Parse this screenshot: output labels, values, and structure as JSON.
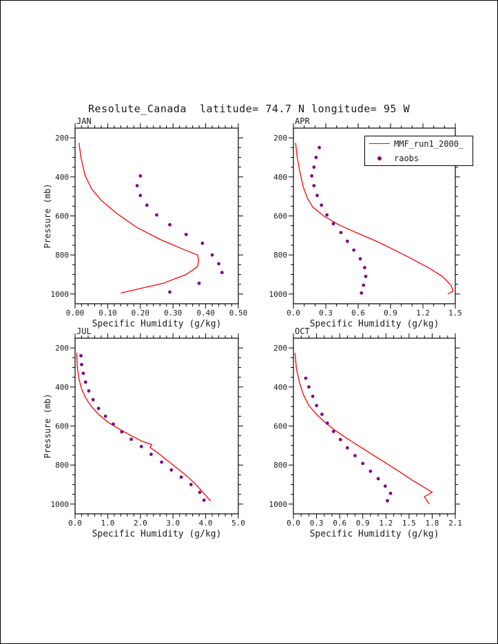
{
  "page": {
    "title": "Resolute_Canada  latitude= 74.7 N longitude= 95 W"
  },
  "colors": {
    "model_line": "#ff0000",
    "raobs_dot": "#800080",
    "axis": "#000000"
  },
  "legend": {
    "position": "top-right",
    "items": [
      {
        "label": "MMF_run1_2000_",
        "type": "line",
        "color": "#ff0000"
      },
      {
        "label": "raobs",
        "type": "dot",
        "color": "#800080"
      }
    ]
  },
  "chart_data": [
    {
      "type": "line",
      "panel": "JAN",
      "xlabel": "Specific Humidity (g/kg)",
      "ylabel": "Pressure (mb)",
      "xlim": [
        0.0,
        0.5
      ],
      "xticks": [
        0.0,
        0.1,
        0.2,
        0.3,
        0.4,
        0.5
      ],
      "xtick_labels": [
        "0.00",
        "0.10",
        "0.20",
        "0.30",
        "0.40",
        "0.50"
      ],
      "xminor_step": 0.02,
      "ylim": [
        150,
        1050
      ],
      "yticks": [
        200,
        400,
        600,
        800,
        1000
      ],
      "ytick_labels": [
        "200",
        "400",
        "600",
        "800",
        "1000"
      ],
      "yminor_step": 50,
      "series": [
        {
          "name": "MMF_run1_2000_",
          "type": "line",
          "color": "#ff0000",
          "points": [
            [
              0.012,
              225
            ],
            [
              0.018,
              300
            ],
            [
              0.03,
              390
            ],
            [
              0.05,
              460
            ],
            [
              0.08,
              520
            ],
            [
              0.13,
              590
            ],
            [
              0.19,
              660
            ],
            [
              0.26,
              720
            ],
            [
              0.33,
              770
            ],
            [
              0.375,
              800
            ],
            [
              0.378,
              830
            ],
            [
              0.375,
              860
            ],
            [
              0.34,
              900
            ],
            [
              0.27,
              945
            ],
            [
              0.14,
              995
            ]
          ]
        },
        {
          "name": "raobs",
          "type": "scatter",
          "color": "#800080",
          "points": [
            [
              0.2,
              395
            ],
            [
              0.19,
              445
            ],
            [
              0.2,
              495
            ],
            [
              0.22,
              545
            ],
            [
              0.25,
              595
            ],
            [
              0.29,
              645
            ],
            [
              0.34,
              695
            ],
            [
              0.39,
              740
            ],
            [
              0.42,
              800
            ],
            [
              0.44,
              845
            ],
            [
              0.45,
              890
            ],
            [
              0.38,
              945
            ],
            [
              0.29,
              990
            ]
          ]
        }
      ]
    },
    {
      "type": "line",
      "panel": "APR",
      "xlabel": "Specific Humidity (g/kg)",
      "ylabel": "",
      "xlim": [
        0.0,
        1.5
      ],
      "xticks": [
        0.0,
        0.3,
        0.6,
        0.9,
        1.2,
        1.5
      ],
      "xtick_labels": [
        "0.0",
        "0.3",
        "0.6",
        "0.9",
        "1.2",
        "1.5"
      ],
      "xminor_step": 0.1,
      "ylim": [
        150,
        1050
      ],
      "yticks": [
        200,
        400,
        600,
        800,
        1000
      ],
      "ytick_labels": [
        "200",
        "400",
        "600",
        "800",
        "1000"
      ],
      "yminor_step": 50,
      "series": [
        {
          "name": "MMF_run1_2000_",
          "type": "line",
          "color": "#ff0000",
          "points": [
            [
              0.02,
              225
            ],
            [
              0.035,
              300
            ],
            [
              0.06,
              375
            ],
            [
              0.09,
              450
            ],
            [
              0.13,
              510
            ],
            [
              0.18,
              555
            ],
            [
              0.28,
              600
            ],
            [
              0.42,
              645
            ],
            [
              0.58,
              685
            ],
            [
              0.75,
              725
            ],
            [
              0.92,
              770
            ],
            [
              1.08,
              815
            ],
            [
              1.25,
              865
            ],
            [
              1.38,
              910
            ],
            [
              1.46,
              955
            ],
            [
              1.48,
              985
            ],
            [
              1.43,
              1000
            ]
          ]
        },
        {
          "name": "raobs",
          "type": "scatter",
          "color": "#800080",
          "points": [
            [
              0.24,
              250
            ],
            [
              0.21,
              300
            ],
            [
              0.19,
              350
            ],
            [
              0.17,
              395
            ],
            [
              0.19,
              445
            ],
            [
              0.22,
              495
            ],
            [
              0.26,
              545
            ],
            [
              0.31,
              595
            ],
            [
              0.37,
              640
            ],
            [
              0.44,
              685
            ],
            [
              0.5,
              730
            ],
            [
              0.56,
              775
            ],
            [
              0.62,
              820
            ],
            [
              0.66,
              865
            ],
            [
              0.67,
              910
            ],
            [
              0.65,
              955
            ],
            [
              0.63,
              995
            ]
          ]
        }
      ]
    },
    {
      "type": "line",
      "panel": "JUL",
      "xlabel": "Specific Humidity (g/kg)",
      "ylabel": "Pressure (mb)",
      "xlim": [
        0.0,
        5.0
      ],
      "xticks": [
        0.0,
        1.0,
        2.0,
        3.0,
        4.0,
        5.0
      ],
      "xtick_labels": [
        "0.0",
        "1.0",
        "2.0",
        "3.0",
        "4.0",
        "5.0"
      ],
      "xminor_step": 0.2,
      "ylim": [
        150,
        1050
      ],
      "yticks": [
        200,
        400,
        600,
        800,
        1000
      ],
      "ytick_labels": [
        "200",
        "400",
        "600",
        "800",
        "1000"
      ],
      "yminor_step": 50,
      "series": [
        {
          "name": "MMF_run1_2000_",
          "type": "line",
          "color": "#ff0000",
          "points": [
            [
              0.05,
              225
            ],
            [
              0.07,
              300
            ],
            [
              0.12,
              360
            ],
            [
              0.2,
              410
            ],
            [
              0.32,
              455
            ],
            [
              0.5,
              500
            ],
            [
              0.72,
              540
            ],
            [
              1.0,
              580
            ],
            [
              1.35,
              615
            ],
            [
              1.7,
              648
            ],
            [
              2.05,
              678
            ],
            [
              2.35,
              695
            ],
            [
              2.3,
              710
            ],
            [
              2.55,
              740
            ],
            [
              2.85,
              780
            ],
            [
              3.15,
              820
            ],
            [
              3.45,
              860
            ],
            [
              3.7,
              900
            ],
            [
              3.95,
              945
            ],
            [
              4.15,
              985
            ]
          ]
        },
        {
          "name": "raobs",
          "type": "scatter",
          "color": "#800080",
          "points": [
            [
              0.18,
              240
            ],
            [
              0.2,
              285
            ],
            [
              0.25,
              330
            ],
            [
              0.32,
              375
            ],
            [
              0.42,
              420
            ],
            [
              0.55,
              465
            ],
            [
              0.72,
              510
            ],
            [
              0.93,
              550
            ],
            [
              1.17,
              590
            ],
            [
              1.43,
              630
            ],
            [
              1.72,
              668
            ],
            [
              2.03,
              705
            ],
            [
              2.33,
              745
            ],
            [
              2.65,
              785
            ],
            [
              2.95,
              825
            ],
            [
              3.25,
              862
            ],
            [
              3.55,
              900
            ],
            [
              3.82,
              940
            ],
            [
              3.95,
              980
            ]
          ]
        }
      ]
    },
    {
      "type": "line",
      "panel": "OCT",
      "xlabel": "Specific Humidity (g/kg)",
      "ylabel": "",
      "xlim": [
        0.0,
        2.1
      ],
      "xticks": [
        0.0,
        0.3,
        0.6,
        0.9,
        1.2,
        1.5,
        1.8,
        2.1
      ],
      "xtick_labels": [
        "0.0",
        "0.3",
        "0.6",
        "0.9",
        "1.2",
        "1.5",
        "1.8",
        "2.1"
      ],
      "xminor_step": 0.1,
      "ylim": [
        150,
        1050
      ],
      "yticks": [
        200,
        400,
        600,
        800,
        1000
      ],
      "ytick_labels": [
        "200",
        "400",
        "600",
        "800",
        "1000"
      ],
      "yminor_step": 50,
      "series": [
        {
          "name": "MMF_run1_2000_",
          "type": "line",
          "color": "#ff0000",
          "points": [
            [
              0.02,
              225
            ],
            [
              0.04,
              310
            ],
            [
              0.08,
              380
            ],
            [
              0.13,
              440
            ],
            [
              0.2,
              495
            ],
            [
              0.3,
              540
            ],
            [
              0.42,
              585
            ],
            [
              0.55,
              625
            ],
            [
              0.7,
              665
            ],
            [
              0.86,
              705
            ],
            [
              1.03,
              748
            ],
            [
              1.2,
              790
            ],
            [
              1.38,
              835
            ],
            [
              1.55,
              880
            ],
            [
              1.72,
              920
            ],
            [
              1.8,
              940
            ],
            [
              1.7,
              962
            ],
            [
              1.76,
              1000
            ]
          ]
        },
        {
          "name": "raobs",
          "type": "scatter",
          "color": "#800080",
          "points": [
            [
              0.16,
              355
            ],
            [
              0.2,
              400
            ],
            [
              0.25,
              448
            ],
            [
              0.3,
              495
            ],
            [
              0.37,
              540
            ],
            [
              0.44,
              585
            ],
            [
              0.52,
              628
            ],
            [
              0.61,
              670
            ],
            [
              0.7,
              712
            ],
            [
              0.8,
              752
            ],
            [
              0.9,
              792
            ],
            [
              1.0,
              832
            ],
            [
              1.1,
              870
            ],
            [
              1.19,
              908
            ],
            [
              1.26,
              945
            ],
            [
              1.22,
              983
            ]
          ]
        }
      ]
    }
  ]
}
